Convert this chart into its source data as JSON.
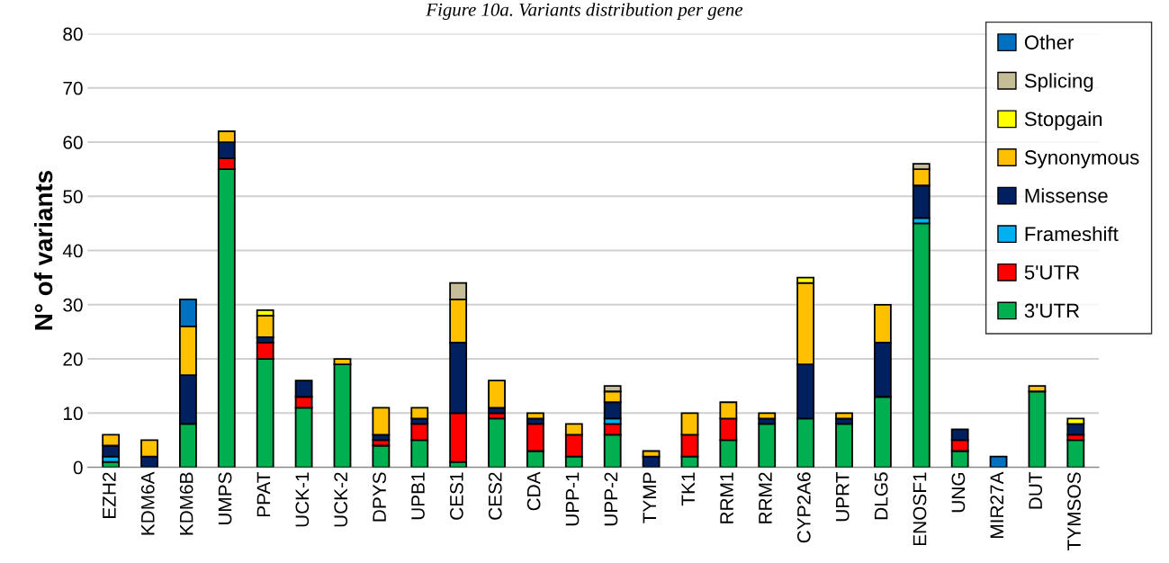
{
  "chart_data": {
    "type": "bar",
    "title": "Figure 10a. Variants distribution per gene",
    "ylabel": "N° of variants",
    "stacked": true,
    "categories": [
      "EZH2",
      "KDM6A",
      "KDM6B",
      "UMPS",
      "PPAT",
      "UCK-1",
      "UCK-2",
      "DPYS",
      "UPB1",
      "CES1",
      "CES2",
      "CDA",
      "UPP-1",
      "UPP-2",
      "TYMP",
      "TK1",
      "RRM1",
      "RRM2",
      "CYP2A6",
      "UPRT",
      "DLG5",
      "ENOSF1",
      "UNG",
      "MIR27A",
      "DUT",
      "TYMSOS"
    ],
    "series": [
      {
        "name": "3'UTR",
        "color": "#00b050",
        "values": [
          1,
          0,
          8,
          55,
          20,
          11,
          19,
          4,
          5,
          1,
          9,
          3,
          2,
          6,
          0,
          2,
          5,
          8,
          9,
          8,
          13,
          45,
          3,
          0,
          14,
          5
        ]
      },
      {
        "name": "5'UTR",
        "color": "#ff0000",
        "values": [
          0,
          0,
          0,
          2,
          3,
          2,
          0,
          1,
          3,
          9,
          1,
          5,
          4,
          2,
          0,
          4,
          4,
          0,
          0,
          0,
          0,
          0,
          2,
          0,
          0,
          1
        ]
      },
      {
        "name": "Frameshift",
        "color": "#00b0f0",
        "values": [
          1,
          0,
          0,
          0,
          0,
          0,
          0,
          0,
          0,
          0,
          0,
          0,
          0,
          1,
          0,
          0,
          0,
          0,
          0,
          0,
          0,
          1,
          0,
          0,
          0,
          0
        ]
      },
      {
        "name": "Missense",
        "color": "#002060",
        "values": [
          2,
          2,
          9,
          3,
          1,
          3,
          0,
          1,
          1,
          13,
          1,
          1,
          0,
          3,
          2,
          0,
          0,
          1,
          10,
          1,
          10,
          6,
          2,
          0,
          0,
          2
        ]
      },
      {
        "name": "Synonymous",
        "color": "#ffc000",
        "values": [
          2,
          3,
          9,
          2,
          4,
          0,
          1,
          5,
          2,
          8,
          5,
          1,
          2,
          2,
          1,
          4,
          3,
          1,
          15,
          1,
          7,
          3,
          0,
          0,
          1,
          0
        ]
      },
      {
        "name": "Stopgain",
        "color": "#ffff00",
        "values": [
          0,
          0,
          0,
          0,
          1,
          0,
          0,
          0,
          0,
          0,
          0,
          0,
          0,
          0,
          0,
          0,
          0,
          0,
          1,
          0,
          0,
          0,
          0,
          0,
          0,
          1
        ]
      },
      {
        "name": "Splicing",
        "color": "#c4bd97",
        "values": [
          0,
          0,
          0,
          0,
          0,
          0,
          0,
          0,
          0,
          3,
          0,
          0,
          0,
          1,
          0,
          0,
          0,
          0,
          0,
          0,
          0,
          1,
          0,
          0,
          0,
          0
        ]
      },
      {
        "name": "Other",
        "color": "#0070c0",
        "values": [
          0,
          0,
          5,
          0,
          0,
          0,
          0,
          0,
          0,
          0,
          0,
          0,
          0,
          0,
          0,
          0,
          0,
          0,
          0,
          0,
          0,
          0,
          0,
          2,
          0,
          0
        ]
      }
    ],
    "ylim": [
      0,
      80
    ],
    "yticks": [
      0,
      10,
      20,
      30,
      40,
      50,
      60,
      70,
      80
    ],
    "grid": "y",
    "legend": "top right"
  }
}
